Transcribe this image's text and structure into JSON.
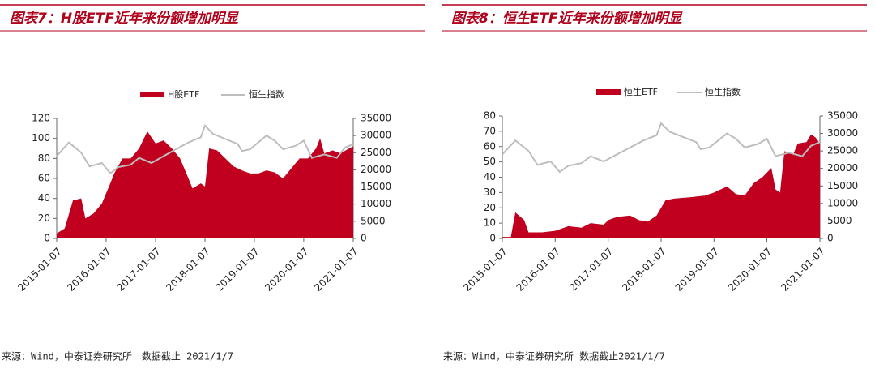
{
  "chart_data": [
    {
      "type": "combo",
      "title": "图表7：H股ETF近年来份额增加明显",
      "note": "来源：Wind，中泰证券研究所　数据截止 2021/1/7",
      "xlim": [
        "2015-01-07",
        "2021-01-07"
      ],
      "xticks": [
        "2015-01-07",
        "2016-01-07",
        "2017-01-07",
        "2018-01-07",
        "2019-01-07",
        "2020-01-07",
        "2021-01-07"
      ],
      "ylim": [
        0,
        120
      ],
      "yticks": [
        0,
        20,
        40,
        60,
        80,
        100,
        120
      ],
      "y2lim": [
        0,
        35000
      ],
      "y2ticks": [
        0,
        5000,
        10000,
        15000,
        20000,
        25000,
        30000,
        35000
      ],
      "series": [
        {
          "name": "H股ETF",
          "type": "area",
          "color": "#c0001e",
          "x": [
            "2015-01-07",
            "2015-03-07",
            "2015-05-07",
            "2015-07-07",
            "2015-08-07",
            "2015-10-07",
            "2015-12-07",
            "2016-02-07",
            "2016-03-07",
            "2016-05-07",
            "2016-07-07",
            "2016-09-07",
            "2016-11-07",
            "2017-01-07",
            "2017-03-07",
            "2017-05-07",
            "2017-07-07",
            "2017-09-07",
            "2017-10-07",
            "2017-12-07",
            "2018-01-07",
            "2018-02-07",
            "2018-04-07",
            "2018-06-07",
            "2018-08-07",
            "2018-10-07",
            "2018-12-07",
            "2019-02-07",
            "2019-04-07",
            "2019-06-07",
            "2019-08-07",
            "2019-10-07",
            "2019-12-07",
            "2020-02-07",
            "2020-04-07",
            "2020-05-07",
            "2020-06-07",
            "2020-08-07",
            "2020-10-07",
            "2020-12-07",
            "2021-01-07"
          ],
          "values": [
            5,
            10,
            38,
            40,
            20,
            25,
            35,
            55,
            65,
            80,
            80,
            90,
            107,
            95,
            98,
            90,
            80,
            60,
            50,
            55,
            52,
            90,
            88,
            80,
            72,
            68,
            65,
            65,
            68,
            66,
            60,
            70,
            80,
            80,
            90,
            100,
            85,
            88,
            85,
            90,
            92
          ]
        },
        {
          "name": "恒生指数",
          "type": "line",
          "axis": "y2",
          "color": "#bdbdbd",
          "x": [
            "2015-01-07",
            "2015-04-07",
            "2015-07-07",
            "2015-09-07",
            "2015-12-07",
            "2016-02-07",
            "2016-04-07",
            "2016-07-07",
            "2016-09-07",
            "2016-12-07",
            "2017-03-07",
            "2017-06-07",
            "2017-09-07",
            "2017-12-07",
            "2018-01-07",
            "2018-03-07",
            "2018-06-07",
            "2018-09-07",
            "2018-10-07",
            "2018-12-07",
            "2019-03-07",
            "2019-04-07",
            "2019-06-07",
            "2019-08-07",
            "2019-11-07",
            "2020-01-07",
            "2020-03-07",
            "2020-06-07",
            "2020-09-07",
            "2020-11-07",
            "2021-01-07"
          ],
          "values": [
            24000,
            28000,
            25000,
            21000,
            22000,
            19000,
            20800,
            21500,
            23500,
            22000,
            24000,
            26000,
            28000,
            29500,
            32900,
            30500,
            29000,
            27500,
            25500,
            26000,
            29000,
            30000,
            28500,
            26000,
            27000,
            28500,
            23500,
            24500,
            23500,
            26500,
            27500
          ]
        }
      ]
    },
    {
      "type": "combo",
      "title": "图表8：恒生ETF近年来份额增加明显",
      "note": "来源：Wind，中泰证券研究所 数据截止2021/1/7",
      "xlim": [
        "2015-01-07",
        "2021-01-07"
      ],
      "xticks": [
        "2015-01-07",
        "2016-01-07",
        "2017-01-07",
        "2018-01-07",
        "2019-01-07",
        "2020-01-07",
        "2021-01-07"
      ],
      "ylim": [
        0,
        80
      ],
      "yticks": [
        0,
        10,
        20,
        30,
        40,
        50,
        60,
        70,
        80
      ],
      "y2lim": [
        0,
        35000
      ],
      "y2ticks": [
        0,
        5000,
        10000,
        15000,
        20000,
        25000,
        30000,
        35000
      ],
      "series": [
        {
          "name": "恒生ETF",
          "type": "area",
          "color": "#c0001e",
          "x": [
            "2015-01-07",
            "2015-03-07",
            "2015-04-07",
            "2015-06-07",
            "2015-07-07",
            "2015-10-07",
            "2016-01-07",
            "2016-04-07",
            "2016-07-07",
            "2016-09-07",
            "2016-12-07",
            "2017-01-07",
            "2017-03-07",
            "2017-06-07",
            "2017-08-07",
            "2017-10-07",
            "2017-12-07",
            "2018-02-07",
            "2018-04-07",
            "2018-08-07",
            "2018-11-07",
            "2019-01-07",
            "2019-04-07",
            "2019-06-07",
            "2019-08-07",
            "2019-10-07",
            "2019-12-07",
            "2020-02-07",
            "2020-03-07",
            "2020-04-07",
            "2020-05-07",
            "2020-07-07",
            "2020-08-07",
            "2020-10-07",
            "2020-11-07",
            "2020-12-07",
            "2021-01-07"
          ],
          "values": [
            1,
            1,
            17,
            12,
            4,
            4,
            5,
            8,
            7,
            10,
            9,
            12,
            14,
            15,
            12,
            11,
            15,
            25,
            26,
            27,
            28,
            30,
            34,
            29,
            28,
            36,
            40,
            46,
            32,
            30,
            57,
            55,
            62,
            63,
            68,
            66,
            62
          ]
        },
        {
          "name": "恒生指数",
          "type": "line",
          "axis": "y2",
          "color": "#bdbdbd",
          "x": [
            "2015-01-07",
            "2015-04-07",
            "2015-07-07",
            "2015-09-07",
            "2015-12-07",
            "2016-02-07",
            "2016-04-07",
            "2016-07-07",
            "2016-09-07",
            "2016-12-07",
            "2017-03-07",
            "2017-06-07",
            "2017-09-07",
            "2017-12-07",
            "2018-01-07",
            "2018-03-07",
            "2018-06-07",
            "2018-09-07",
            "2018-10-07",
            "2018-12-07",
            "2019-03-07",
            "2019-04-07",
            "2019-06-07",
            "2019-08-07",
            "2019-11-07",
            "2020-01-07",
            "2020-03-07",
            "2020-06-07",
            "2020-09-07",
            "2020-11-07",
            "2021-01-07"
          ],
          "values": [
            24000,
            28000,
            25000,
            21000,
            22000,
            19000,
            20800,
            21500,
            23500,
            22000,
            24000,
            26000,
            28000,
            29500,
            32900,
            30500,
            29000,
            27500,
            25500,
            26000,
            29000,
            30000,
            28500,
            26000,
            27000,
            28500,
            23500,
            24500,
            23500,
            26500,
            27500
          ]
        }
      ]
    }
  ]
}
